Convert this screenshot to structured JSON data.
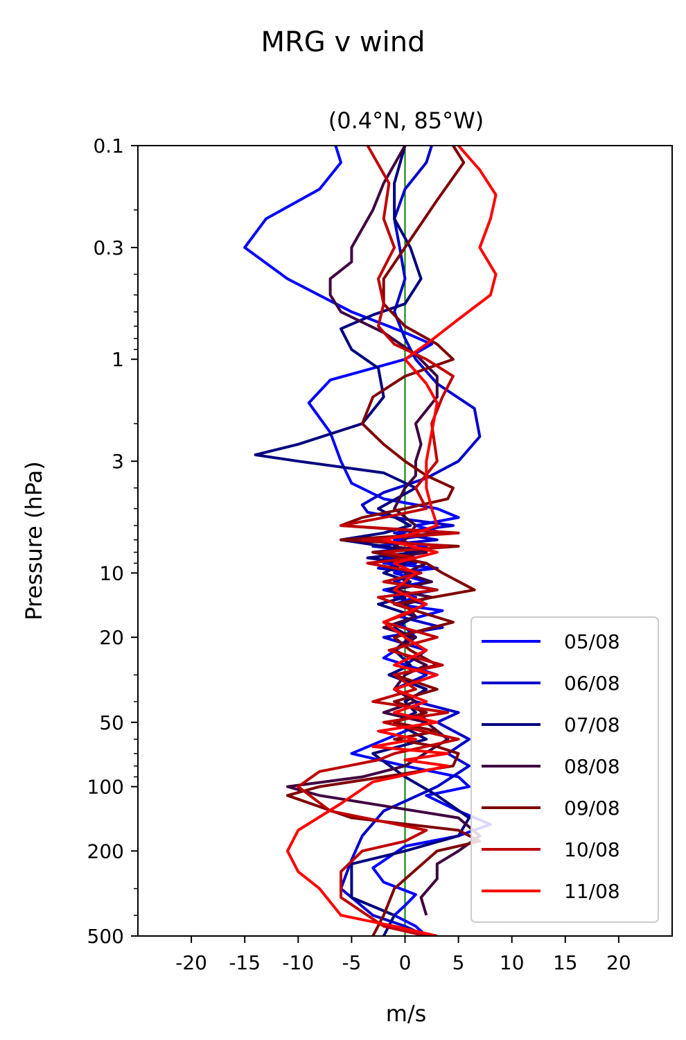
{
  "chart_data": {
    "type": "line",
    "title": "MRG v wind",
    "subtitle": "(0.4°N, 85°W)",
    "xlabel": "m/s",
    "ylabel": "Pressure (hPa)",
    "xlim": [
      -25,
      25
    ],
    "ylim": [
      500,
      0.1
    ],
    "yscale": "log",
    "xticks": [
      -20,
      -15,
      -10,
      -5,
      0,
      5,
      10,
      15,
      20
    ],
    "xtick_labels": [
      "-20",
      "-15",
      "-10",
      "-5",
      "0",
      "5",
      "10",
      "15",
      "20"
    ],
    "yticks": [
      0.1,
      0.3,
      1,
      3,
      10,
      20,
      50,
      100,
      200,
      500
    ],
    "ytick_labels": [
      "0.1",
      "0.3",
      "1",
      "3",
      "10",
      "20",
      "50",
      "100",
      "200",
      "500"
    ],
    "zero_line_color": "#008000",
    "legend_position": "lower-right",
    "series": [
      {
        "name": "05/08",
        "color": "#0000ff",
        "x": [
          -6.5,
          -6.0,
          -8.0,
          -13.0,
          -15.0,
          -11.0,
          -5.0,
          0.0,
          2.5,
          0.0,
          -7.0,
          -9.0,
          -7.0,
          -6.0,
          -5.0,
          -2.0,
          3.0,
          5.0,
          1.0,
          3.5,
          -1.0,
          2.0,
          -3.0,
          1.0,
          -2.0,
          3.0,
          -1.0,
          2.0,
          -2.0,
          1.0,
          -1.0,
          3.5,
          -0.5,
          1.0,
          -2.0,
          3.0,
          -1.0,
          1.0,
          2.0,
          -5.0,
          0.0,
          5.0,
          6.0,
          2.0,
          5.0,
          8.0,
          5.0,
          0.0,
          -3.0,
          -2.0,
          1.0,
          0.0,
          -1.0,
          1.0,
          2.0
        ],
        "y": [
          0.1,
          0.12,
          0.16,
          0.22,
          0.3,
          0.42,
          0.6,
          0.75,
          0.85,
          1.0,
          1.25,
          1.6,
          2.2,
          3.0,
          3.8,
          4.5,
          5.0,
          5.5,
          6.0,
          6.5,
          7.0,
          7.5,
          8.0,
          8.5,
          9.0,
          9.5,
          10.0,
          11.0,
          12.0,
          13.0,
          14.0,
          15.0,
          17.0,
          20.0,
          25.0,
          30.0,
          35.0,
          40.0,
          50.0,
          70.0,
          80.0,
          90.0,
          100.0,
          110.0,
          130.0,
          150.0,
          170.0,
          190.0,
          240.0,
          280.0,
          320.0,
          360.0,
          400.0,
          450.0,
          500.0
        ]
      },
      {
        "name": "06/08",
        "color": "#0000cc",
        "x": [
          2.5,
          2.0,
          0.0,
          -1.0,
          -0.5,
          0.0,
          -1.0,
          0.0,
          1.0,
          3.0,
          6.5,
          7.0,
          5.0,
          2.0,
          -2.0,
          -4.0,
          -3.5,
          0.0,
          4.5,
          -1.0,
          3.0,
          -3.0,
          2.0,
          -2.0,
          1.0,
          -2.5,
          1.0,
          -1.0,
          3.0,
          -1.0,
          2.0,
          -0.5,
          3.5,
          -2.0,
          2.0,
          0.0,
          2.0,
          -1.0,
          1.0,
          5.0,
          3.0,
          6.0,
          4.0,
          6.0,
          3.0,
          -2.0,
          -4.0,
          -5.0,
          -6.0,
          -3.0,
          0.0,
          2.0
        ],
        "y": [
          0.1,
          0.12,
          0.16,
          0.22,
          0.3,
          0.42,
          0.6,
          0.8,
          1.0,
          1.3,
          1.7,
          2.3,
          3.0,
          3.6,
          4.2,
          4.8,
          5.2,
          5.6,
          6.0,
          6.5,
          7.0,
          7.5,
          8.0,
          8.5,
          9.0,
          9.5,
          10.0,
          11.0,
          12.0,
          13.0,
          14.0,
          16.0,
          18.0,
          20.0,
          23.0,
          27.0,
          30.0,
          35.0,
          40.0,
          45.0,
          50.0,
          60.0,
          70.0,
          80.0,
          100.0,
          130.0,
          170.0,
          220.0,
          300.0,
          400.0,
          450.0,
          500.0
        ]
      },
      {
        "name": "07/08",
        "color": "#00007f",
        "x": [
          0.0,
          -1.0,
          -1.0,
          0.5,
          1.5,
          0.0,
          -3.0,
          -6.0,
          -5.0,
          -2.5,
          -2.0,
          -4.0,
          -10.0,
          -14.0,
          -10.0,
          -2.0,
          1.0,
          -2.5,
          0.5,
          -2.0,
          -6.0,
          -2.0,
          1.0,
          -3.5,
          0.0,
          -2.0,
          0.5,
          -1.5,
          0.0,
          -2.5,
          1.0,
          -1.0,
          0.5,
          -1.0,
          0.5,
          -1.5,
          2.0,
          0.0,
          1.0,
          -1.0,
          2.0,
          -3.0,
          0.0,
          3.0,
          6.0,
          5.0,
          0.0,
          -5.0,
          -5.0,
          -1.0,
          -2.0
        ],
        "y": [
          0.1,
          0.15,
          0.22,
          0.3,
          0.42,
          0.55,
          0.62,
          0.72,
          0.9,
          1.1,
          1.5,
          2.0,
          2.5,
          2.8,
          3.0,
          3.4,
          4.0,
          5.0,
          6.0,
          6.5,
          7.0,
          7.5,
          8.0,
          8.5,
          9.0,
          10.0,
          11.0,
          12.0,
          13.0,
          14.0,
          16.0,
          18.0,
          20.0,
          23.0,
          27.0,
          30.0,
          35.0,
          40.0,
          45.0,
          50.0,
          60.0,
          70.0,
          90.0,
          110.0,
          140.0,
          170.0,
          200.0,
          230.0,
          330.0,
          400.0,
          500.0
        ]
      },
      {
        "name": "08/08",
        "color": "#3f003f",
        "x": [
          0.0,
          -2.0,
          -3.0,
          -5.0,
          -5.0,
          -7.0,
          -7.0,
          -6.0,
          -2.0,
          1.0,
          3.0,
          3.0,
          1.0,
          1.5,
          1.0,
          1.0,
          0.0,
          -1.0,
          1.0,
          0.0,
          -1.0,
          2.0,
          -1.0,
          2.0,
          0.0,
          2.5,
          -1.0,
          2.5,
          0.0,
          1.0,
          -2.0,
          1.0,
          -1.0,
          2.0,
          0.0,
          -1.0,
          1.0,
          -2.0,
          2.0,
          4.0,
          0.0,
          -4.0,
          -11.0,
          -8.0,
          5.0,
          7.0,
          5.0,
          3.0,
          3.0,
          1.5,
          2.0
        ],
        "y": [
          0.1,
          0.15,
          0.2,
          0.3,
          0.35,
          0.42,
          0.5,
          0.6,
          0.75,
          0.95,
          1.2,
          1.5,
          2.0,
          2.5,
          3.0,
          3.5,
          4.0,
          5.0,
          6.0,
          7.0,
          7.5,
          8.0,
          8.5,
          9.0,
          10.0,
          11.0,
          12.0,
          13.0,
          14.0,
          16.0,
          18.0,
          20.0,
          23.0,
          27.0,
          30.0,
          35.0,
          40.0,
          45.0,
          50.0,
          60.0,
          80.0,
          90.0,
          100.0,
          110.0,
          140.0,
          170.0,
          200.0,
          230.0,
          270.0,
          330.0,
          400.0
        ]
      },
      {
        "name": "09/08",
        "color": "#7f0000",
        "x": [
          4.5,
          5.5,
          3.0,
          0.0,
          -2.0,
          -2.0,
          0.0,
          3.0,
          4.5,
          0.0,
          -3.0,
          -4.0,
          -2.0,
          0.0,
          2.0,
          4.5,
          4.0,
          0.0,
          -4.0,
          -6.0,
          4.0,
          -6.0,
          5.0,
          -3.0,
          2.0,
          3.5,
          6.5,
          -1.0,
          4.5,
          -1.0,
          0.5,
          3.0,
          -1.0,
          3.0,
          -1.0,
          2.0,
          -1.0,
          3.0,
          -1.0,
          3.0,
          5.0,
          4.5,
          -2.0,
          -8.0,
          -11.0,
          -5.0,
          5.0,
          7.0,
          3.0,
          -1.0,
          -2.0,
          -3.0
        ],
        "y": [
          0.1,
          0.12,
          0.18,
          0.3,
          0.42,
          0.55,
          0.7,
          0.85,
          1.0,
          1.2,
          1.5,
          2.0,
          2.5,
          3.0,
          3.5,
          4.0,
          4.5,
          5.0,
          5.5,
          6.0,
          6.5,
          7.0,
          7.5,
          8.0,
          9.0,
          10.0,
          12.0,
          14.0,
          17.0,
          20.0,
          23.0,
          27.0,
          30.0,
          35.0,
          40.0,
          45.0,
          50.0,
          55.0,
          60.0,
          65.0,
          70.0,
          80.0,
          90.0,
          100.0,
          110.0,
          140.0,
          160.0,
          180.0,
          200.0,
          300.0,
          400.0,
          500.0
        ]
      },
      {
        "name": "10/08",
        "color": "#bf0000",
        "x": [
          -3.5,
          -1.5,
          -2.0,
          -1.0,
          -2.5,
          -2.0,
          -2.5,
          -1.0,
          2.0,
          4.5,
          3.5,
          2.5,
          3.0,
          1.0,
          2.0,
          -2.0,
          -6.0,
          5.0,
          -4.0,
          4.0,
          -2.0,
          1.0,
          -3.5,
          1.5,
          -2.0,
          3.0,
          -2.5,
          1.0,
          -2.0,
          3.0,
          -1.5,
          3.5,
          -1.0,
          1.0,
          -3.0,
          4.0,
          -2.0,
          5.0,
          -1.0,
          -2.5,
          -8.0,
          -10.0,
          -7.0,
          2.0,
          0.0,
          -4.0,
          -6.0,
          -6.0,
          -2.0,
          2.0
        ],
        "y": [
          0.1,
          0.15,
          0.22,
          0.3,
          0.42,
          0.55,
          0.7,
          0.85,
          1.0,
          1.2,
          1.5,
          2.0,
          3.0,
          4.0,
          5.0,
          5.5,
          6.0,
          6.5,
          7.0,
          7.5,
          8.0,
          8.5,
          9.0,
          10.0,
          11.0,
          12.0,
          13.0,
          15.0,
          17.0,
          20.0,
          23.0,
          27.0,
          30.0,
          35.0,
          40.0,
          45.0,
          50.0,
          60.0,
          70.0,
          75.0,
          85.0,
          100.0,
          130.0,
          160.0,
          180.0,
          200.0,
          250.0,
          330.0,
          450.0,
          500.0
        ]
      },
      {
        "name": "11/08",
        "color": "#ff0000",
        "x": [
          5.0,
          7.0,
          8.5,
          8.0,
          7.0,
          8.5,
          8.0,
          5.0,
          2.0,
          0.0,
          2.0,
          3.0,
          2.5,
          2.0,
          2.0,
          2.5,
          3.0,
          1.0,
          -2.0,
          3.0,
          -1.0,
          1.0,
          -1.0,
          2.0,
          -2.0,
          0.0,
          2.0,
          -1.0,
          3.0,
          -1.0,
          2.0,
          -1.0,
          3.0,
          -2.5,
          1.0,
          -3.0,
          4.0,
          0.0,
          4.0,
          -3.0,
          -6.0,
          -10.0,
          -11.0,
          -10.0,
          -8.0,
          -6.0,
          -1.0,
          3.0
        ],
        "y": [
          0.1,
          0.13,
          0.17,
          0.22,
          0.3,
          0.4,
          0.5,
          0.65,
          0.85,
          1.0,
          1.3,
          1.6,
          2.2,
          3.0,
          4.0,
          5.0,
          6.0,
          6.5,
          7.0,
          8.0,
          9.0,
          10.0,
          12.0,
          14.0,
          17.0,
          20.0,
          23.0,
          27.0,
          30.0,
          35.0,
          40.0,
          45.0,
          50.0,
          55.0,
          60.0,
          65.0,
          70.0,
          75.0,
          80.0,
          95.0,
          120.0,
          160.0,
          200.0,
          250.0,
          300.0,
          400.0,
          450.0,
          500.0
        ]
      }
    ]
  }
}
